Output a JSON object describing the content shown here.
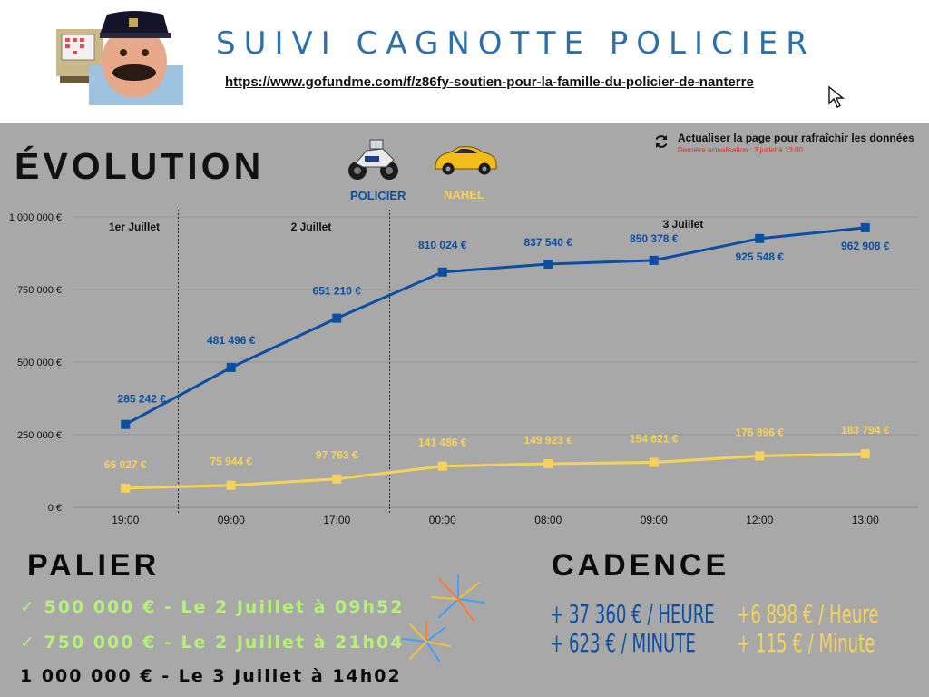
{
  "header": {
    "title": "SUIVI CAGNOTTE POLICIER",
    "url": "https://www.gofundme.com/f/z86fy-soutien-pour-la-famille-du-policier-de-nanterre"
  },
  "evolution_title": "ÉVOLUTION",
  "refresh": {
    "text": "Actualiser la page pour rafraîchir les données",
    "last_update": "Dernière actualisation : 3 juillet à 13:00"
  },
  "legend": {
    "policier": "POLICIER",
    "nahel": "NAHEL"
  },
  "colors": {
    "policier": "#0b4ea2",
    "nahel": "#f5d35a",
    "done": "#b6f07a"
  },
  "chart_data": {
    "type": "line",
    "categories": [
      "19:00",
      "09:00",
      "17:00",
      "00:00",
      "08:00",
      "09:00",
      "12:00",
      "13:00"
    ],
    "day_labels": [
      {
        "label": "1er Juillet",
        "at": 0
      },
      {
        "label": "2 Juillet",
        "at": 2
      },
      {
        "label": "3 Juillet",
        "at": 5
      }
    ],
    "ylim": [
      0,
      1000000
    ],
    "yticks": [
      0,
      250000,
      500000,
      750000,
      1000000
    ],
    "ytick_labels": [
      "0 €",
      "250 000 €",
      "500 000 €",
      "750 000 €",
      "1 000 000 €"
    ],
    "grid": true,
    "series": [
      {
        "name": "POLICIER",
        "values": [
          285242,
          481496,
          651210,
          810024,
          837540,
          850378,
          925548,
          962908
        ],
        "labels": [
          "285 242 €",
          "481 496 €",
          "651 210 €",
          "810 024 €",
          "837 540 €",
          "850 378 €",
          "925 548 €",
          "962 908 €"
        ]
      },
      {
        "name": "NAHEL",
        "values": [
          66027,
          75944,
          97763,
          141486,
          149923,
          154621,
          176896,
          183794
        ],
        "labels": [
          "66 027 €",
          "75 944 €",
          "97 763 €",
          "141 486 €",
          "149 923 €",
          "154 621 €",
          "176 896 €",
          "183 794 €"
        ]
      }
    ]
  },
  "palier": {
    "title": "PALIER",
    "items": [
      {
        "text": "✓ 500 000 € - Le 2 Juillet à 09h52",
        "done": true
      },
      {
        "text": "✓ 750 000 € - Le 2 Juillet à 21h04",
        "done": true
      },
      {
        "text": "1 000 000 € - Le 3 Juillet à 14h02",
        "done": false
      }
    ]
  },
  "cadence": {
    "title": "CADENCE",
    "policier": [
      "+ 37 360 € / HEURE",
      "+ 623 € / MINUTE"
    ],
    "nahel": [
      "+6 898 € / Heure",
      "+ 115 € / Minute"
    ]
  }
}
